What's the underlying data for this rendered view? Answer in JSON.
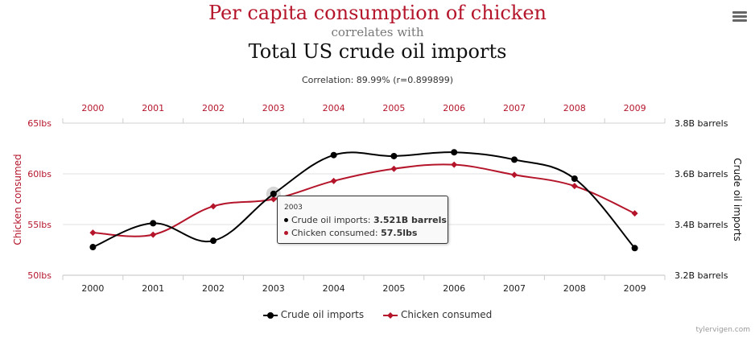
{
  "header": {
    "title_top": "Per capita consumption of chicken",
    "connector": "correlates with",
    "title_bottom": "Total US crude oil imports",
    "correlation": "Correlation: 89.99% (r=0.899899)"
  },
  "tooltip": {
    "year": "2003",
    "oil_label": "Crude oil imports: ",
    "oil_value": "3.521B barrels",
    "chicken_label": "Chicken consumed: ",
    "chicken_value": "57.5lbs"
  },
  "credit": "tylervigen.com",
  "menu_icon": "hamburger-menu-icon",
  "chart_data": {
    "type": "line",
    "categories": [
      "2000",
      "2001",
      "2002",
      "2003",
      "2004",
      "2005",
      "2006",
      "2007",
      "2008",
      "2009"
    ],
    "left_axis": {
      "label": "Chicken consumed",
      "range": [
        50,
        65
      ],
      "ticks": [
        "50lbs",
        "55lbs",
        "60lbs",
        "65lbs"
      ],
      "tick_values": [
        50,
        55,
        60,
        65
      ],
      "color": "#b5152b"
    },
    "right_axis": {
      "label": "Crude oil imports",
      "range": [
        3.2,
        3.8
      ],
      "ticks": [
        "3.2B barrels",
        "3.4B barrels",
        "3.6B barrels",
        "3.8B barrels"
      ],
      "tick_values": [
        3.2,
        3.4,
        3.6,
        3.8
      ],
      "color": "#111111"
    },
    "highlight_index": 3,
    "series": [
      {
        "name": "Crude oil imports",
        "axis": "right",
        "color": "#000000",
        "marker": "circle",
        "values": [
          3.311,
          3.405,
          3.336,
          3.521,
          3.674,
          3.67,
          3.685,
          3.656,
          3.581,
          3.307
        ]
      },
      {
        "name": "Chicken consumed",
        "axis": "left",
        "color": "#b5152b",
        "marker": "diamond",
        "values": [
          54.2,
          54.0,
          56.8,
          57.5,
          59.3,
          60.5,
          60.9,
          59.9,
          58.8,
          56.1
        ]
      }
    ],
    "legend_position": "bottom",
    "grid": true
  }
}
